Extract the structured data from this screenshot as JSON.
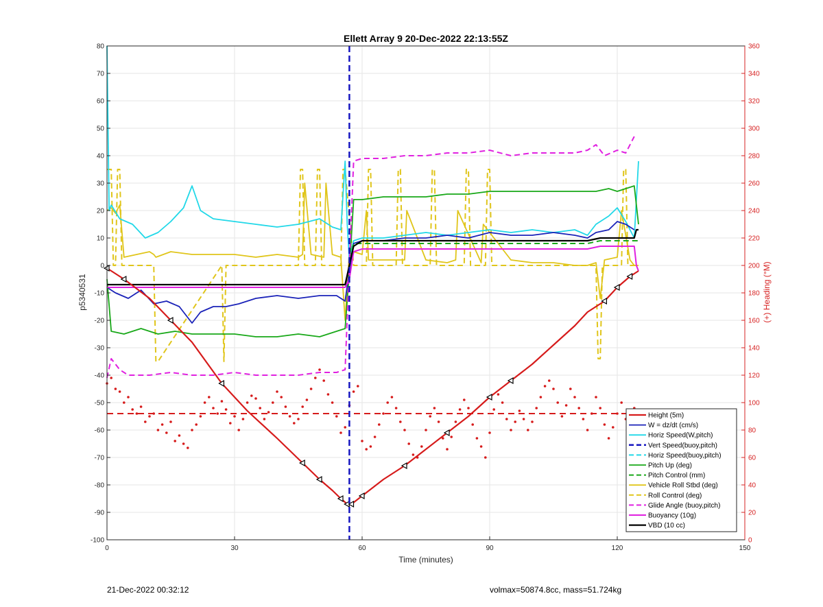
{
  "chart_data": {
    "type": "line",
    "title": "Ellett Array 9 20-Dec-2022 22:13:55Z",
    "xlabel": "Time (minutes)",
    "ylabel": "p5340531",
    "ylabel_right": "(+) Heading (°M)",
    "xlim": [
      0,
      150
    ],
    "ylim": [
      -100,
      80
    ],
    "ylim_right": [
      0,
      360
    ],
    "xticks": [
      0,
      30,
      60,
      90,
      120,
      150
    ],
    "yticks": [
      -100,
      -90,
      -80,
      -70,
      -60,
      -50,
      -40,
      -30,
      -20,
      -10,
      0,
      10,
      20,
      30,
      40,
      50,
      60,
      70,
      80
    ],
    "yticks_right": [
      0,
      20,
      40,
      60,
      80,
      100,
      120,
      140,
      160,
      180,
      200,
      220,
      240,
      260,
      280,
      300,
      320,
      340,
      360
    ],
    "grid": true,
    "legend_position": "bottom-right",
    "vertical_line": {
      "x": 57,
      "color": "#1515c0"
    },
    "series": [
      {
        "name": "Height (5m)",
        "color": "#d61b1b",
        "style": "solid",
        "width": 2.2,
        "x": [
          0,
          4,
          10,
          15,
          20,
          27,
          33,
          40,
          46,
          50,
          53,
          55,
          56.5,
          57.5,
          60,
          65,
          70,
          75,
          80,
          85,
          90,
          95,
          100,
          105,
          110,
          113,
          117,
          120,
          123,
          125
        ],
        "y": [
          -1,
          -5,
          -12,
          -20,
          -28,
          -43,
          -53,
          -63,
          -72,
          -78,
          -82,
          -85,
          -87,
          -87,
          -84,
          -78,
          -73,
          -67,
          -61,
          -55,
          -48,
          -42,
          -36,
          -29,
          -22,
          -17,
          -13,
          -8,
          -4,
          -2
        ]
      },
      {
        "name": "W = dz/dt (cm/s)",
        "color": "#1a22b8",
        "style": "solid",
        "width": 1.8,
        "x": [
          0,
          2,
          5,
          8,
          11,
          14,
          17,
          19,
          20,
          22,
          25,
          28,
          31,
          35,
          40,
          45,
          50,
          54,
          56,
          57,
          58,
          60,
          65,
          70,
          75,
          80,
          85,
          90,
          95,
          100,
          105,
          110,
          113,
          115,
          118,
          120,
          122,
          124
        ],
        "y": [
          -8,
          -10,
          -12,
          -9,
          -14,
          -13,
          -15,
          -19,
          -21,
          -17,
          -15,
          -15,
          -14,
          -12,
          -11,
          -12,
          -11,
          -11,
          -13,
          -2,
          8,
          9,
          9,
          10,
          10,
          11,
          10,
          12,
          11,
          11,
          12,
          11,
          10,
          12,
          13,
          16,
          15,
          13
        ]
      },
      {
        "name": "Horiz Speed(W,pitch)",
        "color": "#21d8e8",
        "style": "solid",
        "width": 1.8,
        "x": [
          0,
          0.5,
          1,
          3,
          6,
          9,
          12,
          15,
          18,
          20,
          22,
          25,
          30,
          35,
          40,
          45,
          50,
          53,
          55,
          56,
          56.5,
          57,
          58,
          60,
          65,
          70,
          75,
          80,
          85,
          90,
          95,
          100,
          105,
          110,
          113,
          115,
          118,
          120,
          122,
          124,
          125
        ],
        "y": [
          80,
          20,
          22,
          17,
          15,
          10,
          12,
          16,
          21,
          29,
          20,
          17,
          16,
          15,
          14,
          15,
          17,
          14,
          13,
          38,
          15,
          2,
          9,
          10,
          10,
          11,
          12,
          11,
          12,
          13,
          12,
          13,
          12,
          13,
          11,
          15,
          18,
          21,
          16,
          10,
          38
        ]
      },
      {
        "name": "Vert Speed(buoy,pitch)",
        "color": "#1515c0",
        "style": "dashed",
        "width": 2.5,
        "x": [],
        "y": []
      },
      {
        "name": "Horiz Speed(buoy,pitch)",
        "color": "#21d8e8",
        "style": "dashed",
        "width": 2,
        "x": [],
        "y": []
      },
      {
        "name": "Pitch Up (deg)",
        "color": "#18a818",
        "style": "solid",
        "width": 1.8,
        "x": [
          0,
          1,
          4,
          8,
          12,
          16,
          20,
          25,
          30,
          35,
          40,
          45,
          50,
          54,
          56,
          57,
          58,
          60,
          65,
          70,
          75,
          80,
          85,
          90,
          95,
          100,
          105,
          110,
          113,
          115,
          118,
          120,
          122,
          124,
          125
        ],
        "y": [
          -5,
          -24,
          -25,
          -23,
          -25,
          -24,
          -25,
          -25,
          -25,
          -26,
          -26,
          -25,
          -26,
          -24,
          -23,
          -2,
          24,
          24,
          25,
          25,
          25,
          26,
          26,
          27,
          27,
          27,
          27,
          27,
          27,
          27,
          28,
          27,
          28,
          29,
          15
        ]
      },
      {
        "name": "Pitch Control (mm)",
        "color": "#18a818",
        "style": "dashed",
        "width": 2,
        "x": [
          0,
          56,
          58,
          113,
          116,
          125
        ],
        "y": [
          -8,
          -8,
          8,
          8,
          9,
          9
        ]
      },
      {
        "name": "Vehicle Roll Stbd (deg)",
        "color": "#e0c51a",
        "style": "solid",
        "width": 1.8,
        "x": [
          0,
          1,
          2,
          3,
          4,
          7,
          10,
          11,
          11.5,
          15,
          20,
          25,
          27,
          27.5,
          30,
          35,
          40,
          45,
          46,
          46.5,
          48,
          51,
          51.5,
          53,
          55,
          56,
          57,
          58,
          60,
          61,
          61.5,
          65,
          70,
          70.5,
          75,
          80,
          82,
          82.5,
          88,
          88.5,
          95,
          100,
          105,
          110,
          113,
          115,
          116,
          117,
          120,
          121,
          123,
          124,
          125
        ],
        "y": [
          20,
          21,
          19,
          22,
          3,
          4,
          5,
          4,
          3,
          5,
          4,
          4,
          4,
          4,
          4,
          3,
          4,
          3,
          4,
          30,
          4,
          3,
          30,
          4,
          3,
          -20,
          5,
          5,
          4,
          20,
          2,
          2,
          2,
          20,
          2,
          1,
          2,
          20,
          1,
          15,
          2,
          1,
          1,
          0,
          0,
          1,
          -12,
          2,
          3,
          20,
          2,
          0,
          0
        ]
      },
      {
        "name": "Roll Control (deg)",
        "color": "#e0c51a",
        "style": "dashed",
        "width": 2,
        "x": [
          0,
          1,
          1.5,
          2,
          2.5,
          3,
          3.5,
          4.5,
          5,
          11,
          11.5,
          12,
          27,
          27.5,
          28,
          45,
          45.5,
          46,
          46.5,
          49,
          49.5,
          50,
          50.5,
          55,
          55.5,
          56,
          58,
          61,
          61.5,
          62,
          62.5,
          68,
          68.5,
          69,
          69.5,
          76,
          76.5,
          77,
          77.5,
          84,
          84.5,
          85,
          85.5,
          89,
          89.5,
          90,
          90.5,
          115,
          115.5,
          116,
          116.5,
          121,
          121.5,
          122,
          122.5,
          124,
          125
        ],
        "y": [
          35,
          35,
          0,
          0,
          35,
          35,
          0,
          0,
          0,
          0,
          -35,
          -35,
          0,
          -35,
          0,
          0,
          35,
          35,
          0,
          0,
          35,
          35,
          0,
          0,
          35,
          35,
          0,
          0,
          35,
          35,
          0,
          0,
          35,
          35,
          0,
          0,
          35,
          35,
          0,
          0,
          35,
          35,
          0,
          0,
          35,
          35,
          0,
          0,
          -34,
          -34,
          0,
          0,
          35,
          35,
          0,
          0,
          0
        ]
      },
      {
        "name": "Glide Angle (buoy,pitch)",
        "color": "#e020e0",
        "style": "dashed",
        "width": 2,
        "x": [
          0,
          1,
          3,
          5,
          10,
          15,
          20,
          25,
          30,
          35,
          40,
          45,
          50,
          54,
          56,
          57,
          58,
          60,
          65,
          70,
          75,
          80,
          85,
          90,
          95,
          100,
          105,
          110,
          113,
          115,
          117,
          120,
          122,
          124
        ],
        "y": [
          -41,
          -34,
          -38,
          -40,
          -40,
          -39,
          -40,
          -40,
          -39,
          -40,
          -40,
          -40,
          -39,
          -39,
          -38,
          0,
          38,
          39,
          39,
          40,
          40,
          41,
          41,
          42,
          40,
          41,
          41,
          41,
          42,
          44,
          40,
          42,
          41,
          47
        ]
      },
      {
        "name": "Buoyancy (10g)",
        "color": "#e020e0",
        "style": "solid",
        "width": 2,
        "x": [
          0,
          56,
          57,
          58,
          60,
          113,
          116,
          124,
          124.5,
          125
        ],
        "y": [
          -8,
          -8,
          -5,
          5,
          6,
          6,
          7,
          7,
          0,
          -2
        ]
      },
      {
        "name": "VBD (10 cc)",
        "color": "#000000",
        "style": "solid",
        "width": 2.2,
        "x": [
          0,
          56,
          57,
          58,
          60,
          113,
          116,
          124,
          124.5,
          125
        ],
        "y": [
          -7,
          -7,
          0,
          7,
          9,
          9,
          10,
          10,
          13,
          13
        ]
      }
    ],
    "heading_mean": 92,
    "heading_points": [
      [
        0,
        114
      ],
      [
        1,
        118
      ],
      [
        2,
        110
      ],
      [
        3,
        108
      ],
      [
        4,
        100
      ],
      [
        5,
        104
      ],
      [
        6,
        95
      ],
      [
        7,
        92
      ],
      [
        8,
        97
      ],
      [
        9,
        86
      ],
      [
        10,
        90
      ],
      [
        11,
        92
      ],
      [
        12,
        80
      ],
      [
        13,
        84
      ],
      [
        14,
        78
      ],
      [
        15,
        86
      ],
      [
        16,
        72
      ],
      [
        17,
        76
      ],
      [
        18,
        70
      ],
      [
        19,
        67
      ],
      [
        20,
        80
      ],
      [
        21,
        84
      ],
      [
        22,
        90
      ],
      [
        23,
        100
      ],
      [
        24,
        104
      ],
      [
        25,
        96
      ],
      [
        26,
        92
      ],
      [
        27,
        101
      ],
      [
        28,
        95
      ],
      [
        29,
        85
      ],
      [
        30,
        90
      ],
      [
        31,
        80
      ],
      [
        32,
        88
      ],
      [
        33,
        100
      ],
      [
        34,
        105
      ],
      [
        35,
        103
      ],
      [
        36,
        96
      ],
      [
        37,
        88
      ],
      [
        38,
        93
      ],
      [
        39,
        100
      ],
      [
        40,
        108
      ],
      [
        41,
        104
      ],
      [
        42,
        97
      ],
      [
        43,
        90
      ],
      [
        44,
        85
      ],
      [
        45,
        88
      ],
      [
        46,
        97
      ],
      [
        47,
        102
      ],
      [
        48,
        110
      ],
      [
        49,
        118
      ],
      [
        50,
        124
      ],
      [
        51,
        116
      ],
      [
        52,
        106
      ],
      [
        53,
        100
      ],
      [
        54,
        90
      ],
      [
        55,
        78
      ],
      [
        56,
        82
      ],
      [
        57,
        98
      ],
      [
        58,
        108
      ],
      [
        59,
        112
      ],
      [
        60,
        72
      ],
      [
        61,
        66
      ],
      [
        62,
        68
      ],
      [
        63,
        75
      ],
      [
        64,
        84
      ],
      [
        65,
        92
      ],
      [
        66,
        100
      ],
      [
        67,
        104
      ],
      [
        68,
        96
      ],
      [
        69,
        86
      ],
      [
        70,
        80
      ],
      [
        71,
        70
      ],
      [
        72,
        62
      ],
      [
        73,
        60
      ],
      [
        74,
        68
      ],
      [
        75,
        80
      ],
      [
        76,
        90
      ],
      [
        77,
        96
      ],
      [
        78,
        86
      ],
      [
        79,
        74
      ],
      [
        80,
        66
      ],
      [
        81,
        75
      ],
      [
        82,
        86
      ],
      [
        83,
        95
      ],
      [
        84,
        102
      ],
      [
        85,
        96
      ],
      [
        86,
        84
      ],
      [
        87,
        74
      ],
      [
        88,
        68
      ],
      [
        89,
        60
      ],
      [
        90,
        78
      ],
      [
        91,
        95
      ],
      [
        92,
        106
      ],
      [
        93,
        100
      ],
      [
        94,
        88
      ],
      [
        95,
        80
      ],
      [
        96,
        86
      ],
      [
        97,
        94
      ],
      [
        98,
        88
      ],
      [
        99,
        80
      ],
      [
        100,
        86
      ],
      [
        101,
        96
      ],
      [
        102,
        104
      ],
      [
        103,
        112
      ],
      [
        104,
        116
      ],
      [
        105,
        110
      ],
      [
        106,
        100
      ],
      [
        107,
        90
      ],
      [
        108,
        98
      ],
      [
        109,
        110
      ],
      [
        110,
        104
      ],
      [
        111,
        96
      ],
      [
        112,
        88
      ],
      [
        113,
        80
      ],
      [
        114,
        92
      ],
      [
        115,
        104
      ],
      [
        116,
        96
      ],
      [
        117,
        84
      ],
      [
        118,
        74
      ],
      [
        119,
        82
      ],
      [
        120,
        92
      ],
      [
        121,
        100
      ],
      [
        122,
        88
      ],
      [
        123,
        80
      ],
      [
        124,
        96
      ]
    ]
  },
  "footer": {
    "timestamp": "21-Dec-2022 00:32:12",
    "info": "volmax=50874.8cc, mass=51.724kg"
  }
}
